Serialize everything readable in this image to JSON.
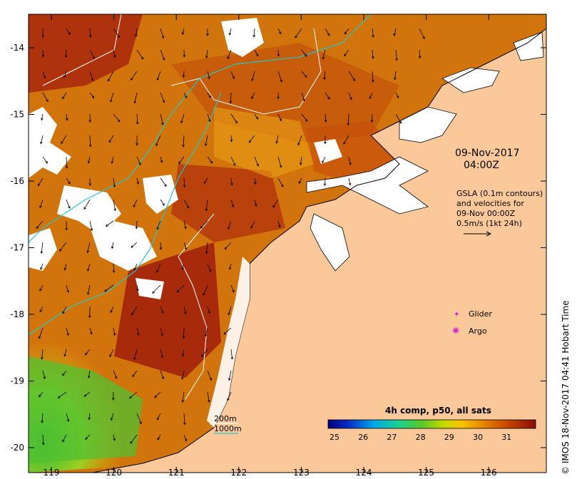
{
  "map": {
    "date_label": "09-Nov-2017",
    "time_label": "04:00Z",
    "gsla_lines": [
      "GSLA (0.1m contours)",
      "and velocities for",
      "09-Nov 00:00Z",
      "0.5m/s (1kt 24h)"
    ],
    "legend": {
      "glider_label": "Glider",
      "argo_label": "Argo",
      "glider_color": "#d020d0",
      "argo_color": "#d020d0"
    },
    "isobaths": {
      "label_200": "200m",
      "label_1000": "1000m",
      "color_200": "#ffffff",
      "color_1000": "#20c8c8"
    },
    "colorbar": {
      "title": "4h comp, p50, all sats",
      "ticks": [
        "25",
        "26",
        "27",
        "28",
        "29",
        "30",
        "31"
      ]
    },
    "credit": "© IMOS 18-Nov-2017 04:41 Hobart Time",
    "lon_ticks": [
      "119",
      "120",
      "121",
      "122",
      "123",
      "124",
      "125",
      "126"
    ],
    "lat_ticks": [
      "-14",
      "-15",
      "-16",
      "-17",
      "-18",
      "-19",
      "-20"
    ],
    "colors": {
      "land": "#fbc89a",
      "sst_warm": "#a8200c",
      "sst_mid": "#d06a08",
      "sst_cool": "#6ac02a"
    }
  }
}
